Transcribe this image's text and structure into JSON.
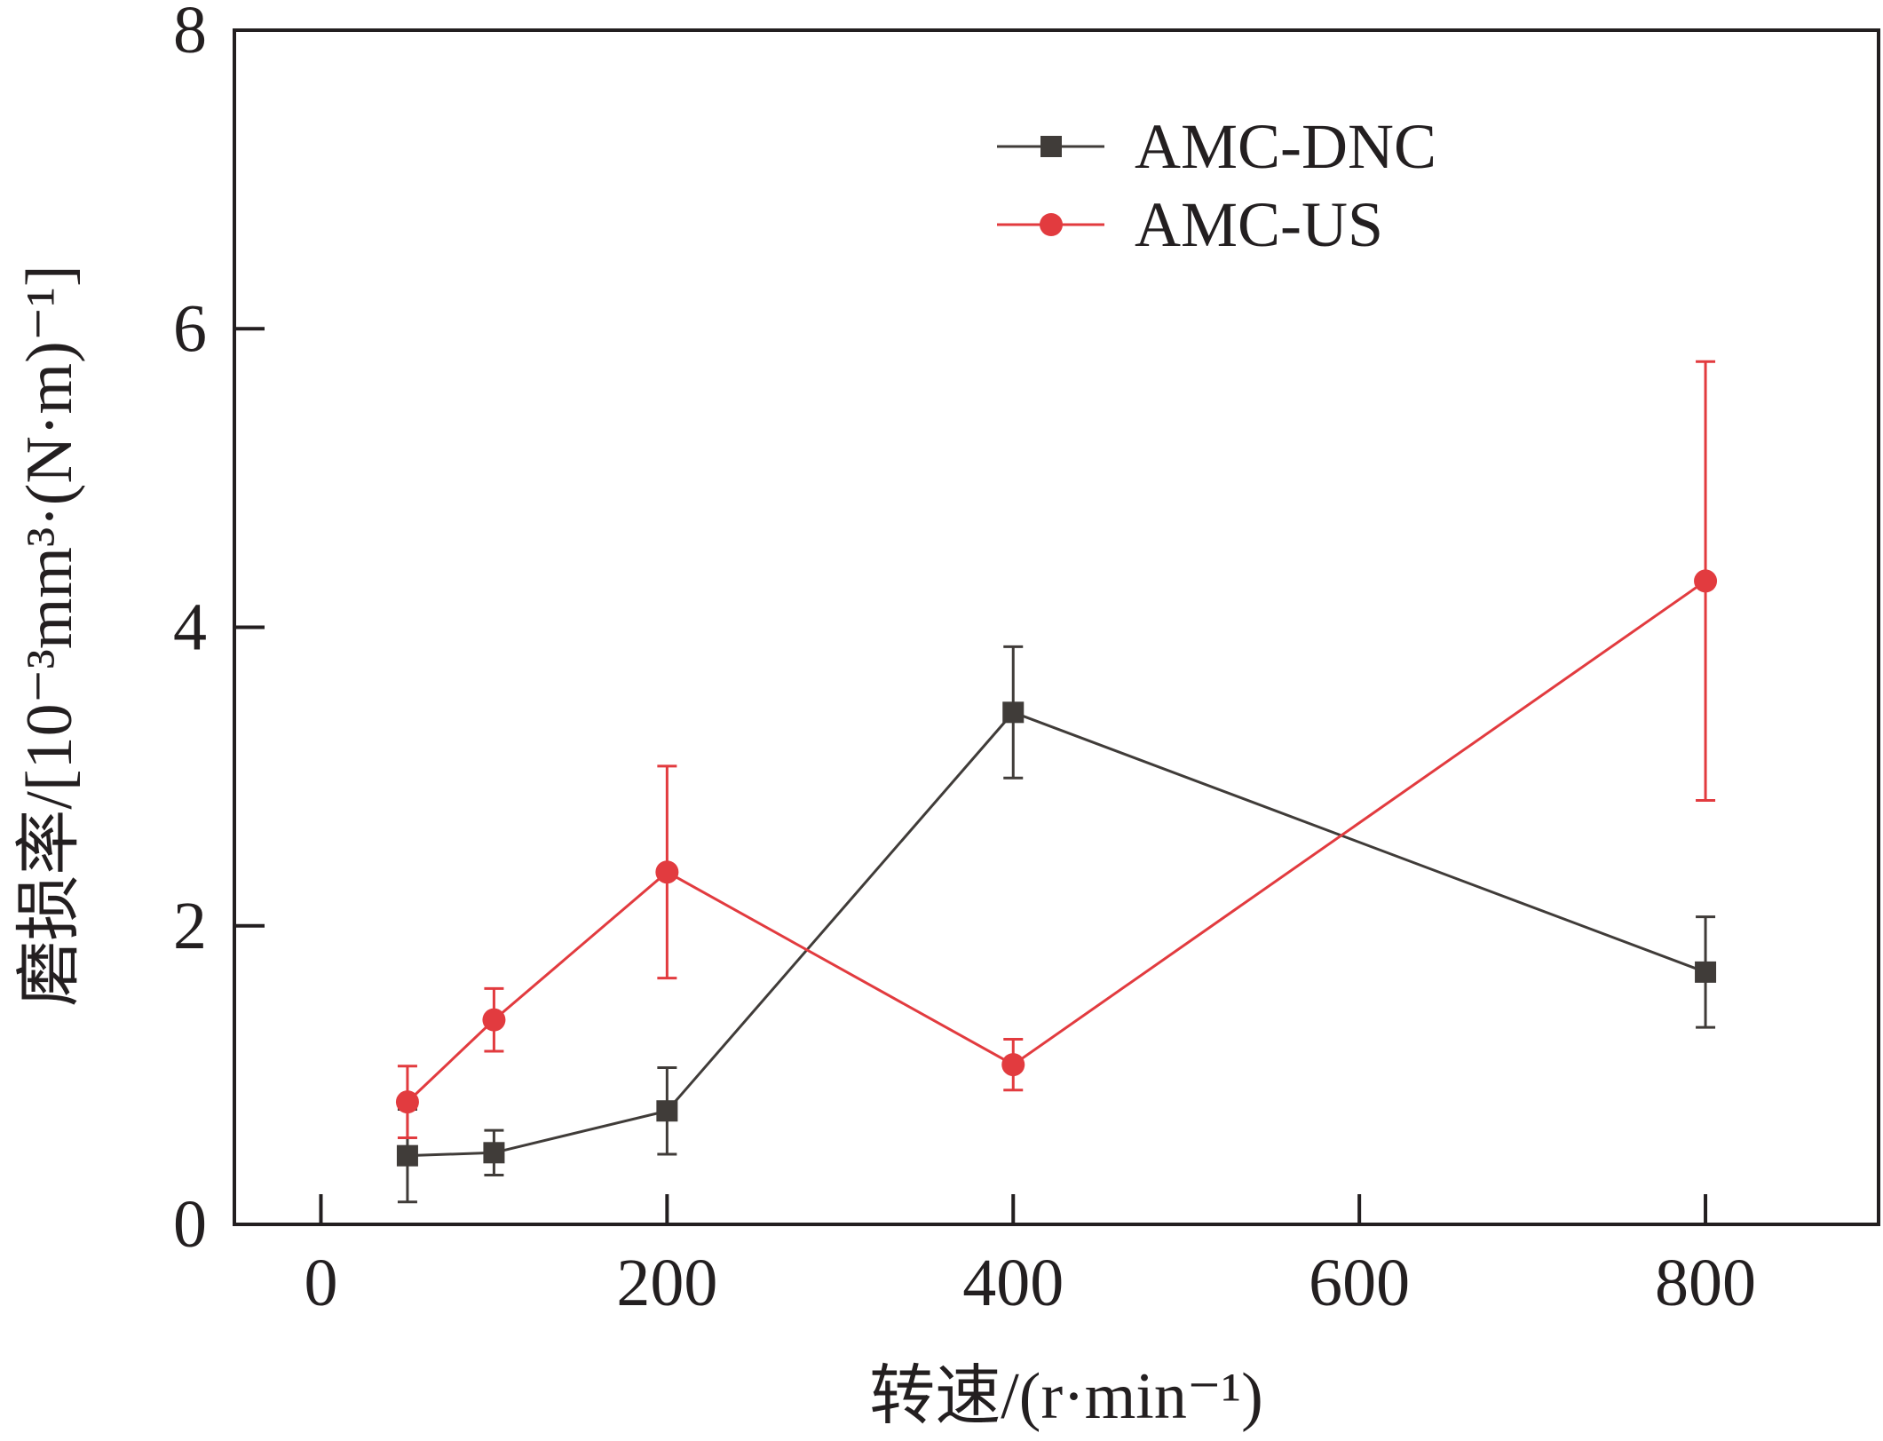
{
  "chart_data": {
    "type": "line",
    "xlabel": "转速/(r·min⁻¹)",
    "ylabel": "磨损率/[10⁻³mm³·(N·m)⁻¹]",
    "xlim": [
      -50,
      900
    ],
    "ylim": [
      0,
      8
    ],
    "xticks": [
      0,
      200,
      400,
      600,
      800
    ],
    "yticks": [
      0,
      2,
      4,
      6,
      8
    ],
    "grid": false,
    "legend_position": "top-right",
    "series": [
      {
        "name": "AMC-DNC",
        "color": "#403c39",
        "marker": "square",
        "x": [
          50,
          100,
          200,
          400,
          800
        ],
        "y": [
          0.46,
          0.48,
          0.76,
          3.43,
          1.69
        ],
        "error": [
          0.31,
          0.15,
          0.29,
          0.44,
          0.37
        ]
      },
      {
        "name": "AMC-US",
        "color": "#e23b3f",
        "marker": "circle",
        "x": [
          50,
          100,
          200,
          400,
          800
        ],
        "y": [
          0.82,
          1.37,
          2.36,
          1.07,
          4.31
        ],
        "error": [
          0.24,
          0.21,
          0.71,
          0.17,
          1.47
        ]
      }
    ]
  }
}
